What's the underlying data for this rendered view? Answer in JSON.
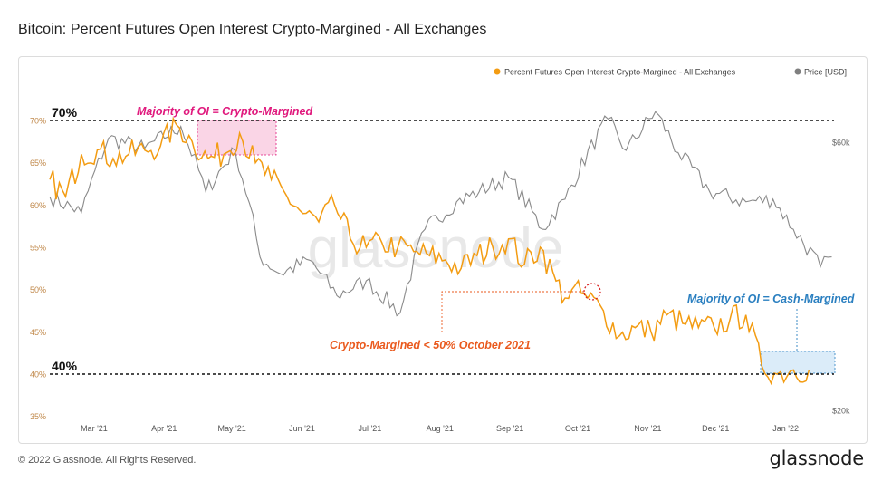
{
  "title": "Bitcoin: Percent Futures Open Interest Crypto-Margined - All Exchanges",
  "footer": {
    "copyright": "© 2022 Glassnode. All Rights Reserved.",
    "brand": "glassnode"
  },
  "watermark": "glassnode",
  "legend": [
    {
      "label": "Percent Futures Open Interest Crypto-Margined - All Exchanges",
      "color": "#f39c12"
    },
    {
      "label": "Price [USD]",
      "color": "#7f7f7f"
    }
  ],
  "annotations": {
    "line70": "70%",
    "line40": "40%",
    "majority_crypto": "Majority of OI = Crypto-Margined",
    "majority_cash": "Majority of OI = Cash-Margined",
    "crossing": "Crypto-Margined < 50% October 2021"
  },
  "colors": {
    "oi": "#f39c12",
    "price": "#8a8a8a",
    "pink": "#e0197d",
    "blue": "#2a7fc0",
    "orange_text": "#ea5a1e"
  },
  "chart_data": {
    "type": "line",
    "title": "Bitcoin: Percent Futures Open Interest Crypto-Margined - All Exchanges",
    "x_ticks": [
      "Mar '21",
      "Apr '21",
      "May '21",
      "Jun '21",
      "Jul '21",
      "Aug '21",
      "Sep '21",
      "Oct '21",
      "Nov '21",
      "Dec '21",
      "Jan '22"
    ],
    "y_left": {
      "ticks": [
        "35%",
        "40%",
        "45%",
        "50%",
        "55%",
        "60%",
        "65%",
        "70%"
      ],
      "range": [
        35,
        70
      ]
    },
    "y_right": {
      "ticks": [
        "$20k",
        "$60k"
      ],
      "scale": "log"
    },
    "reference_lines": [
      70,
      40
    ],
    "series": [
      {
        "name": "Percent Futures Open Interest Crypto-Margined - All Exchanges",
        "unit": "%",
        "x": [
          "2021-02-15",
          "2021-02-22",
          "2021-03-01",
          "2021-03-08",
          "2021-03-15",
          "2021-03-22",
          "2021-03-29",
          "2021-04-05",
          "2021-04-12",
          "2021-04-19",
          "2021-04-26",
          "2021-05-03",
          "2021-05-10",
          "2021-05-17",
          "2021-05-24",
          "2021-05-31",
          "2021-06-07",
          "2021-06-14",
          "2021-06-21",
          "2021-06-28",
          "2021-07-05",
          "2021-07-12",
          "2021-07-19",
          "2021-07-26",
          "2021-08-02",
          "2021-08-09",
          "2021-08-16",
          "2021-08-23",
          "2021-08-30",
          "2021-09-06",
          "2021-09-13",
          "2021-09-20",
          "2021-09-27",
          "2021-10-01",
          "2021-10-04",
          "2021-10-11",
          "2021-10-18",
          "2021-10-25",
          "2021-11-01",
          "2021-11-08",
          "2021-11-15",
          "2021-11-22",
          "2021-11-29",
          "2021-12-06",
          "2021-12-13",
          "2021-12-20",
          "2021-12-27",
          "2022-01-03",
          "2022-01-10",
          "2022-01-17"
        ],
        "y": [
          63,
          61,
          66,
          66.5,
          65.5,
          66,
          66.5,
          67,
          69.5,
          67.5,
          65.5,
          66,
          68.5,
          65,
          63,
          61,
          59,
          58,
          60,
          56,
          55,
          55.5,
          55,
          54.5,
          54,
          53.5,
          52.5,
          54,
          55,
          56,
          53,
          55,
          51,
          49,
          50,
          49,
          47.5,
          44.5,
          45.5,
          45,
          47,
          46,
          45.5,
          45.5,
          46.5,
          47,
          41,
          40,
          40.5,
          40.5
        ]
      },
      {
        "name": "Price [USD]",
        "unit": "USD",
        "x": [
          "2021-02-15",
          "2021-03-01",
          "2021-03-13",
          "2021-03-29",
          "2021-04-14",
          "2021-04-25",
          "2021-05-08",
          "2021-05-19",
          "2021-05-28",
          "2021-06-10",
          "2021-06-22",
          "2021-07-05",
          "2021-07-20",
          "2021-07-31",
          "2021-08-14",
          "2021-08-24",
          "2021-09-06",
          "2021-09-21",
          "2021-10-01",
          "2021-10-20",
          "2021-10-28",
          "2021-11-10",
          "2021-11-20",
          "2021-12-04",
          "2021-12-20",
          "2022-01-01",
          "2022-01-10",
          "2022-01-22",
          "2022-01-27"
        ],
        "y": [
          48000,
          45000,
          61000,
          58500,
          64000,
          49000,
          58000,
          37500,
          35000,
          37000,
          32000,
          34000,
          29800,
          42000,
          47000,
          49000,
          52000,
          42000,
          47500,
          66000,
          58000,
          68000,
          57500,
          49000,
          47000,
          47500,
          42000,
          36000,
          37500
        ]
      }
    ]
  }
}
